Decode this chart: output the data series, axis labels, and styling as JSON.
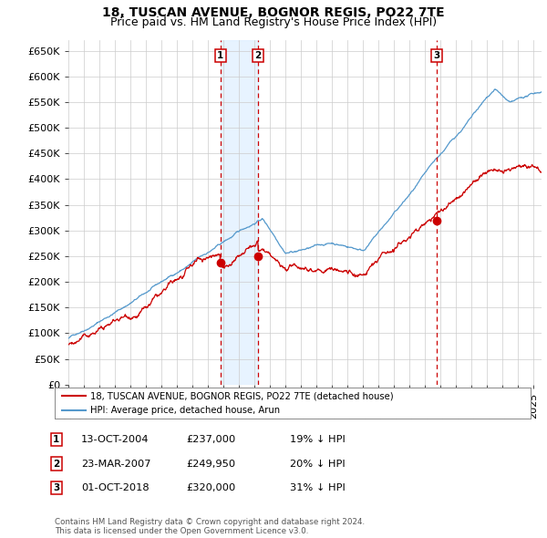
{
  "title": "18, TUSCAN AVENUE, BOGNOR REGIS, PO22 7TE",
  "subtitle": "Price paid vs. HM Land Registry's House Price Index (HPI)",
  "ylim": [
    0,
    670000
  ],
  "yticks": [
    0,
    50000,
    100000,
    150000,
    200000,
    250000,
    300000,
    350000,
    400000,
    450000,
    500000,
    550000,
    600000,
    650000
  ],
  "ytick_labels": [
    "£0",
    "£50K",
    "£100K",
    "£150K",
    "£200K",
    "£250K",
    "£300K",
    "£350K",
    "£400K",
    "£450K",
    "£500K",
    "£550K",
    "£600K",
    "£650K"
  ],
  "xlim_start": 1995.0,
  "xlim_end": 2025.5,
  "sale_dates": [
    2004.79,
    2007.23,
    2018.75
  ],
  "sale_prices": [
    237000,
    249950,
    320000
  ],
  "sale_labels": [
    "1",
    "2",
    "3"
  ],
  "vline_color": "#cc0000",
  "dot_color": "#cc0000",
  "sale_line_color": "#cc0000",
  "hpi_line_color": "#5599cc",
  "shade_color": "#ddeeff",
  "legend_sale_label": "18, TUSCAN AVENUE, BOGNOR REGIS, PO22 7TE (detached house)",
  "legend_hpi_label": "HPI: Average price, detached house, Arun",
  "table_entries": [
    {
      "label": "1",
      "date": "13-OCT-2004",
      "price": "£237,000",
      "hpi": "19% ↓ HPI"
    },
    {
      "label": "2",
      "date": "23-MAR-2007",
      "price": "£249,950",
      "hpi": "20% ↓ HPI"
    },
    {
      "label": "3",
      "date": "01-OCT-2018",
      "price": "£320,000",
      "hpi": "31% ↓ HPI"
    }
  ],
  "footer": "Contains HM Land Registry data © Crown copyright and database right 2024.\nThis data is licensed under the Open Government Licence v3.0.",
  "bg_color": "#ffffff",
  "grid_color": "#cccccc",
  "title_fontsize": 10,
  "subtitle_fontsize": 9,
  "tick_fontsize": 8
}
